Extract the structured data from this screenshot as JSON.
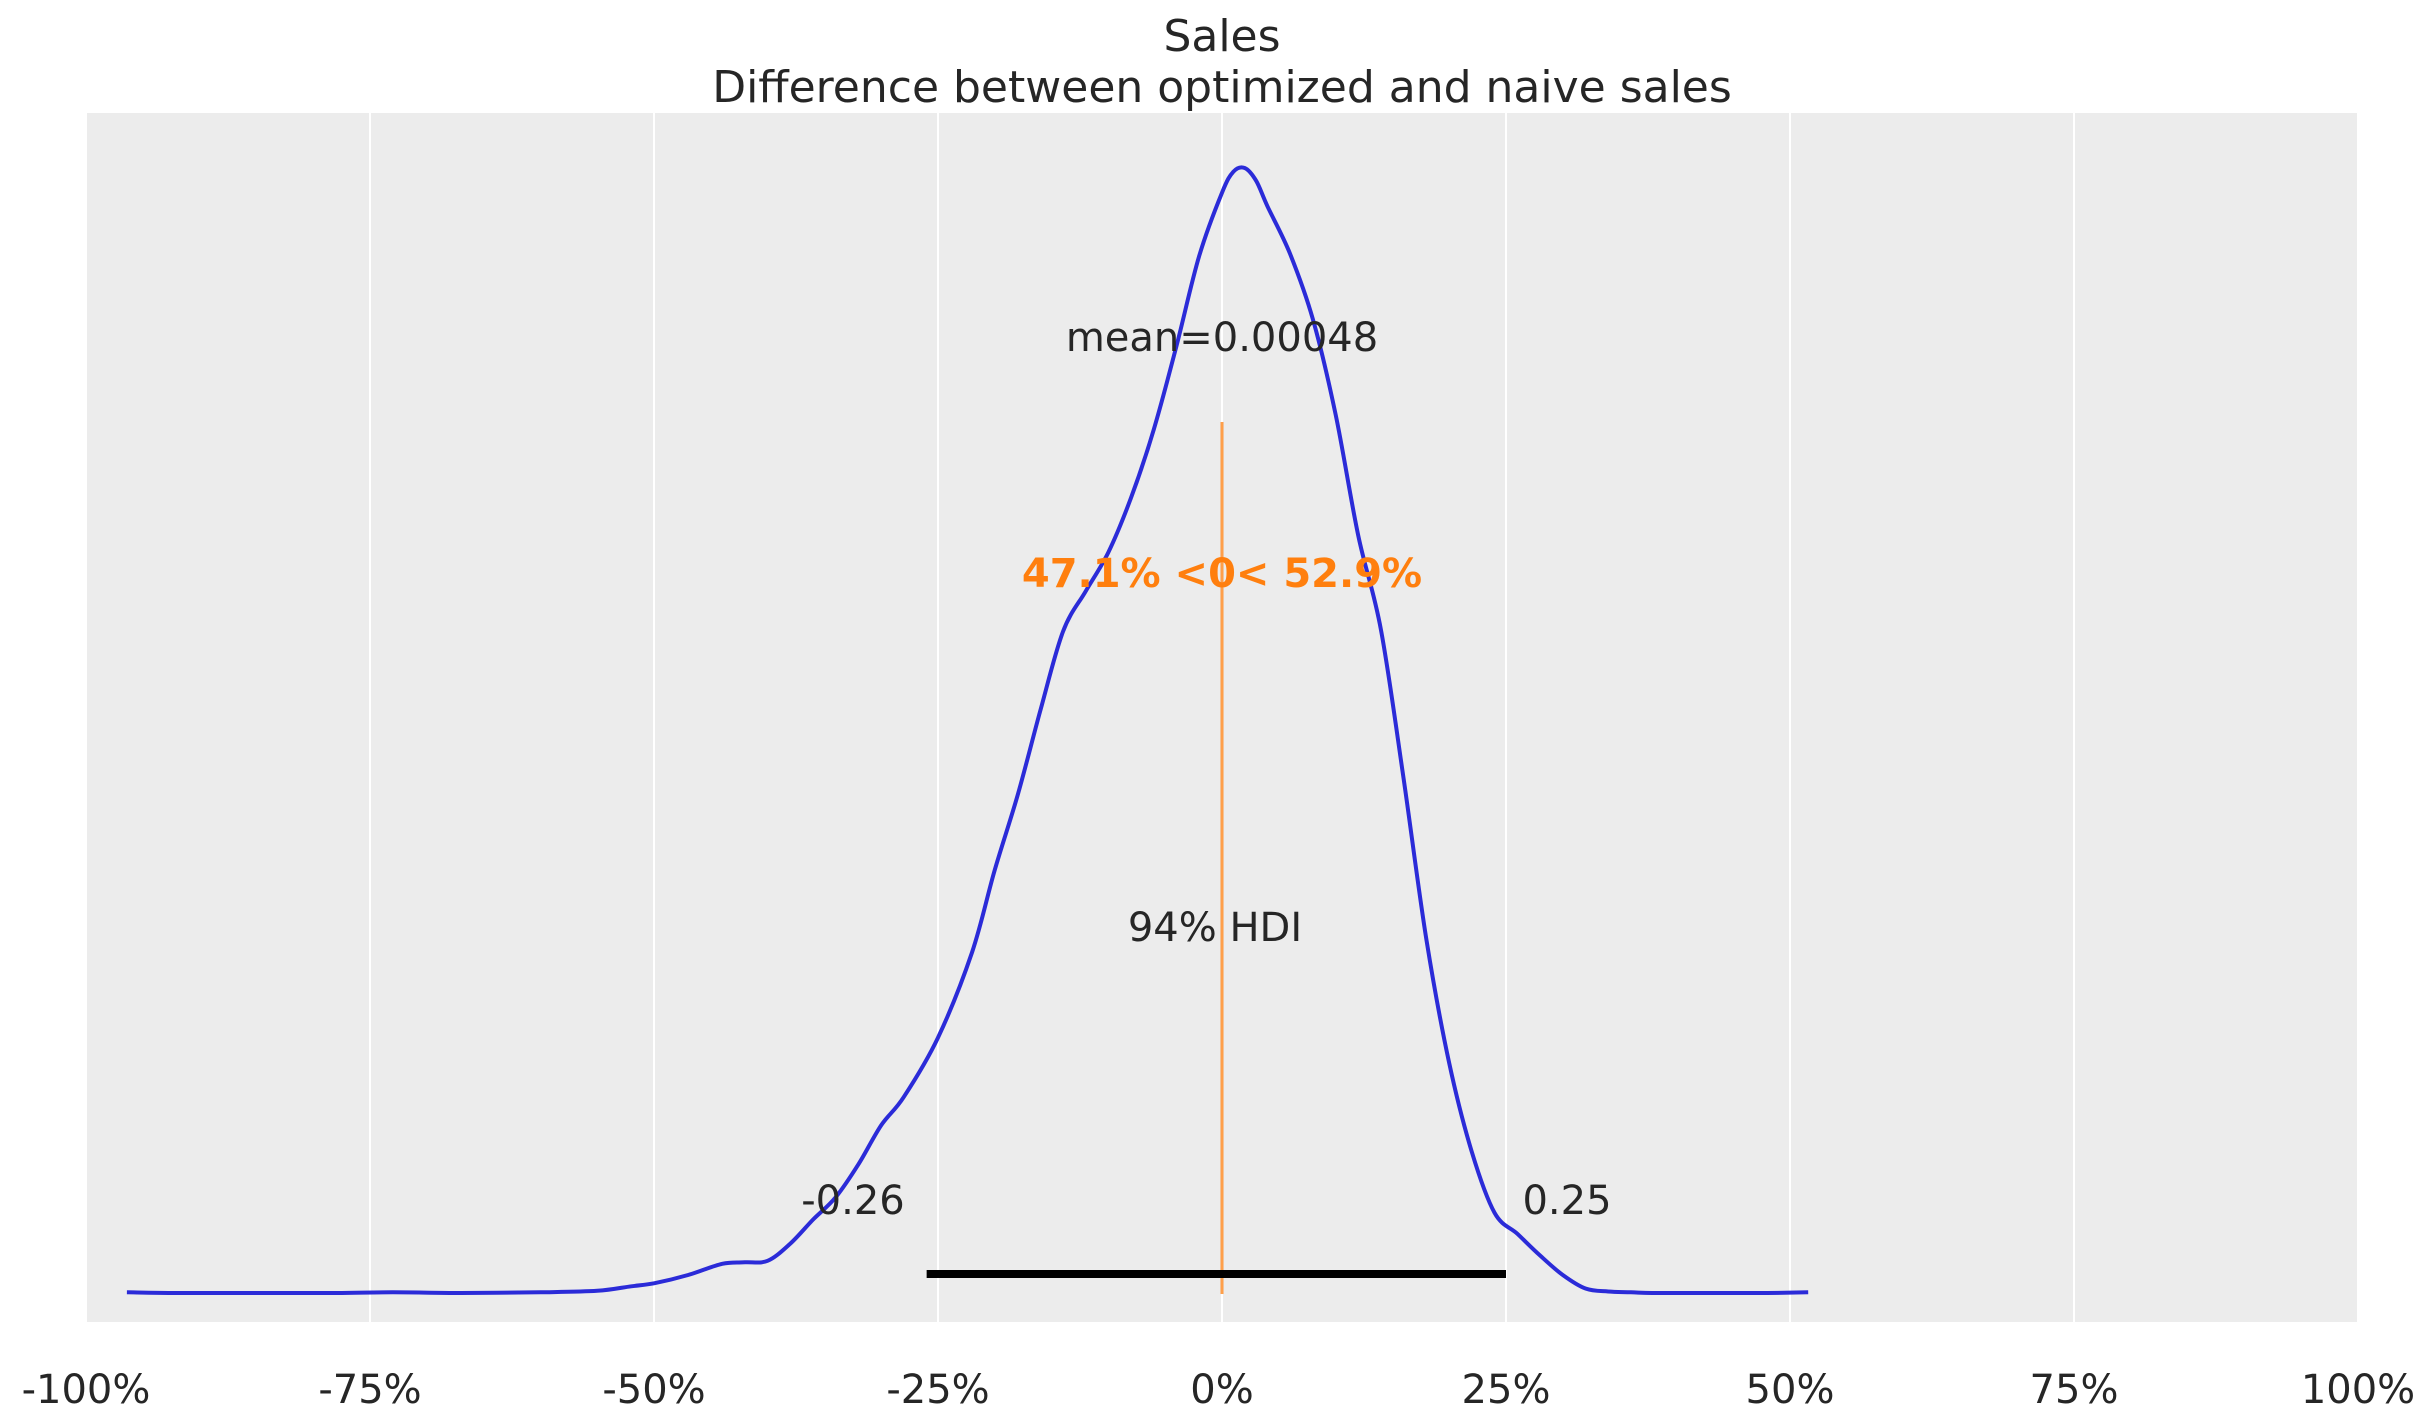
{
  "chart_data": {
    "type": "area",
    "title": "Sales",
    "subtitle": "Difference between optimized and naive sales",
    "xlim": [
      -1.0,
      1.0
    ],
    "x_ticks": [
      -1.0,
      -0.75,
      -0.5,
      -0.25,
      0.0,
      0.25,
      0.5,
      0.75,
      1.0
    ],
    "x_tick_labels": [
      "-100%",
      "-75%",
      "-50%",
      "-25%",
      "0%",
      "25%",
      "50%",
      "75%",
      "100%"
    ],
    "grid": true,
    "series": [
      {
        "x": [
          -0.964,
          -0.92,
          -0.85,
          -0.78,
          -0.73,
          -0.67,
          -0.6,
          -0.55,
          -0.52,
          -0.5,
          -0.47,
          -0.44,
          -0.42,
          -0.4,
          -0.38,
          -0.36,
          -0.34,
          -0.32,
          -0.3,
          -0.28,
          -0.25,
          -0.22,
          -0.2,
          -0.18,
          -0.16,
          -0.14,
          -0.12,
          -0.1,
          -0.08,
          -0.06,
          -0.04,
          -0.02,
          0.0,
          0.01,
          0.02,
          0.03,
          0.04,
          0.06,
          0.08,
          0.1,
          0.12,
          0.14,
          0.16,
          0.18,
          0.2,
          0.22,
          0.24,
          0.26,
          0.28,
          0.3,
          0.32,
          0.34,
          0.36,
          0.38,
          0.42,
          0.45,
          0.48,
          0.516
        ],
        "y": [
          0.001,
          0.0,
          0.0,
          0.0,
          0.001,
          0.0,
          0.001,
          0.003,
          0.009,
          0.013,
          0.024,
          0.039,
          0.041,
          0.043,
          0.066,
          0.098,
          0.128,
          0.172,
          0.224,
          0.262,
          0.341,
          0.455,
          0.565,
          0.664,
          0.777,
          0.883,
          0.937,
          0.989,
          1.062,
          1.153,
          1.265,
          1.385,
          1.469,
          1.497,
          1.502,
          1.485,
          1.451,
          1.387,
          1.3,
          1.173,
          1.011,
          0.885,
          0.685,
          0.471,
          0.307,
          0.188,
          0.107,
          0.079,
          0.05,
          0.024,
          0.006,
          0.002,
          0.001,
          0.0,
          0.0,
          0.0,
          0.0,
          0.001
        ],
        "color": "#2b2bd8"
      }
    ],
    "annotations": {
      "mean_label": "mean=0.00048",
      "ref_val": 0.0,
      "ref_label": "47.1% <0< 52.9%",
      "ref_color": "#ff7f0e",
      "hdi_label": "94% HDI",
      "hdi_low": -0.26,
      "hdi_high": 0.25,
      "hdi_low_label": "-0.26",
      "hdi_high_label": "0.25"
    },
    "colors": {
      "plot_background": "#ececec",
      "grid": "#ffffff",
      "hdi_bar": "#000000",
      "text": "#262626"
    }
  }
}
